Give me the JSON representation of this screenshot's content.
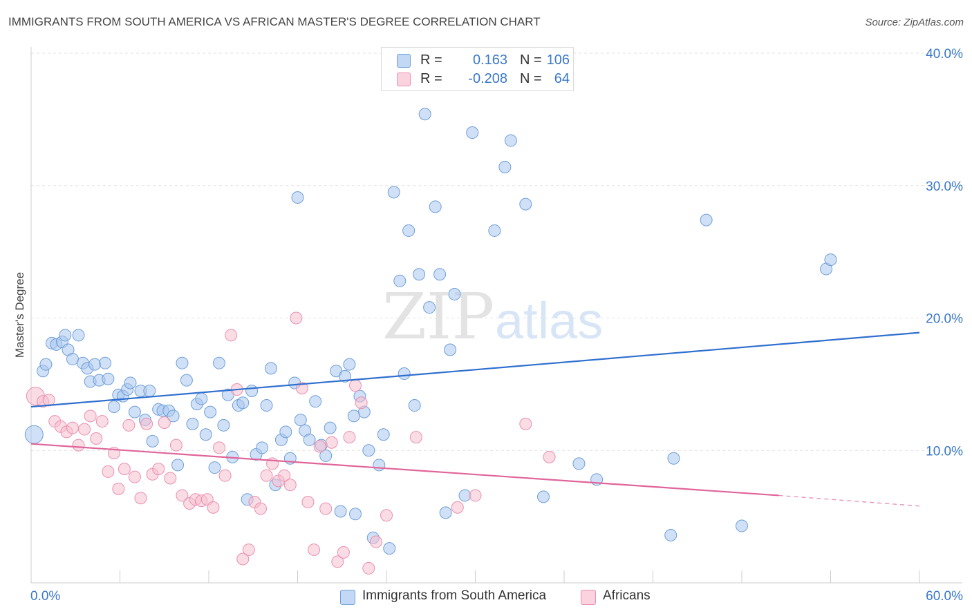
{
  "title": "IMMIGRANTS FROM SOUTH AMERICA VS AFRICAN MASTER'S DEGREE CORRELATION CHART",
  "source": "Source: ZipAtlas.com",
  "watermark": {
    "zip": "ZIP",
    "atlas": "atlas"
  },
  "legend": {
    "r_label": "R =",
    "n_label": "N =",
    "rows": [
      {
        "r": "0.163",
        "n": "106"
      },
      {
        "r": "-0.208",
        "n": "64"
      }
    ]
  },
  "chart_data": {
    "type": "scatter",
    "title": "IMMIGRANTS FROM SOUTH AMERICA VS AFRICAN MASTER'S DEGREE CORRELATION CHART",
    "xlabel": "",
    "ylabel": "Master's Degree",
    "xlim": [
      0,
      60
    ],
    "ylim": [
      0,
      40
    ],
    "x_tick_labels": [
      "0.0%",
      "60.0%"
    ],
    "y_ticks": [
      10,
      20,
      30,
      40
    ],
    "y_tick_labels": [
      "10.0%",
      "20.0%",
      "30.0%",
      "40.0%"
    ],
    "grid": "horizontal dashed",
    "legend_placement": "top-center and bottom",
    "series": [
      {
        "name": "Immigrants from South America",
        "color": "#a9c6ee",
        "edge_color": "#6f9fd8",
        "line_color": "#2f6fcf",
        "r": 0.163,
        "n": 106,
        "trend": {
          "x": [
            0,
            60
          ],
          "y": [
            13.3,
            18.9
          ]
        },
        "points": [
          [
            0.2,
            11.2
          ],
          [
            0.8,
            16.0
          ],
          [
            1.0,
            16.5
          ],
          [
            1.4,
            18.1
          ],
          [
            1.7,
            18.0
          ],
          [
            2.1,
            18.2
          ],
          [
            2.3,
            18.7
          ],
          [
            2.5,
            17.6
          ],
          [
            2.8,
            16.9
          ],
          [
            3.2,
            18.7
          ],
          [
            3.5,
            16.6
          ],
          [
            3.8,
            16.2
          ],
          [
            4.0,
            15.2
          ],
          [
            4.3,
            16.5
          ],
          [
            4.6,
            15.3
          ],
          [
            5.0,
            16.6
          ],
          [
            5.2,
            15.4
          ],
          [
            5.6,
            13.3
          ],
          [
            5.9,
            14.2
          ],
          [
            6.2,
            14.1
          ],
          [
            6.5,
            14.6
          ],
          [
            6.7,
            15.1
          ],
          [
            7.0,
            12.9
          ],
          [
            7.4,
            14.5
          ],
          [
            7.7,
            12.3
          ],
          [
            8.0,
            14.5
          ],
          [
            8.2,
            10.7
          ],
          [
            8.6,
            13.1
          ],
          [
            8.9,
            13.0
          ],
          [
            9.3,
            13.0
          ],
          [
            9.6,
            12.6
          ],
          [
            9.9,
            8.9
          ],
          [
            10.2,
            16.6
          ],
          [
            10.5,
            15.3
          ],
          [
            10.9,
            12.0
          ],
          [
            11.2,
            13.5
          ],
          [
            11.5,
            13.9
          ],
          [
            11.8,
            11.2
          ],
          [
            12.1,
            12.9
          ],
          [
            12.4,
            8.7
          ],
          [
            12.7,
            16.6
          ],
          [
            13.0,
            11.9
          ],
          [
            13.3,
            14.2
          ],
          [
            13.6,
            9.5
          ],
          [
            14.0,
            13.4
          ],
          [
            14.3,
            13.6
          ],
          [
            14.6,
            6.3
          ],
          [
            14.9,
            14.5
          ],
          [
            15.2,
            9.7
          ],
          [
            15.6,
            10.2
          ],
          [
            15.9,
            13.4
          ],
          [
            16.2,
            16.2
          ],
          [
            16.5,
            7.4
          ],
          [
            16.9,
            10.8
          ],
          [
            17.2,
            11.4
          ],
          [
            17.5,
            9.4
          ],
          [
            17.8,
            15.1
          ],
          [
            18.2,
            12.3
          ],
          [
            18.5,
            11.5
          ],
          [
            18.8,
            10.8
          ],
          [
            19.2,
            13.7
          ],
          [
            19.6,
            10.4
          ],
          [
            19.9,
            9.6
          ],
          [
            20.2,
            11.7
          ],
          [
            20.6,
            16.0
          ],
          [
            20.9,
            5.4
          ],
          [
            21.2,
            15.6
          ],
          [
            21.5,
            16.5
          ],
          [
            21.9,
            5.2
          ],
          [
            22.2,
            14.1
          ],
          [
            22.5,
            12.9
          ],
          [
            22.8,
            10.0
          ],
          [
            23.1,
            3.4
          ],
          [
            23.5,
            8.9
          ],
          [
            23.8,
            11.2
          ],
          [
            24.2,
            2.6
          ],
          [
            24.5,
            29.5
          ],
          [
            24.9,
            22.8
          ],
          [
            25.2,
            15.8
          ],
          [
            25.5,
            26.6
          ],
          [
            25.9,
            13.4
          ],
          [
            26.2,
            23.3
          ],
          [
            26.6,
            35.4
          ],
          [
            26.9,
            20.8
          ],
          [
            27.3,
            28.4
          ],
          [
            27.6,
            23.3
          ],
          [
            28.0,
            5.3
          ],
          [
            28.3,
            17.6
          ],
          [
            28.6,
            21.8
          ],
          [
            18.0,
            29.1
          ],
          [
            29.3,
            6.6
          ],
          [
            29.8,
            34.0
          ],
          [
            31.3,
            26.6
          ],
          [
            32.0,
            31.4
          ],
          [
            32.4,
            33.4
          ],
          [
            33.4,
            28.6
          ],
          [
            34.6,
            6.5
          ],
          [
            37.0,
            9.0
          ],
          [
            38.2,
            7.8
          ],
          [
            43.2,
            3.6
          ],
          [
            43.4,
            9.4
          ],
          [
            45.6,
            27.4
          ],
          [
            48.0,
            4.3
          ],
          [
            53.7,
            23.7
          ],
          [
            54.0,
            24.4
          ],
          [
            21.8,
            12.6
          ]
        ]
      },
      {
        "name": "Africans",
        "color": "#f6bfd0",
        "edge_color": "#ea8fae",
        "line_color": "#e0649a",
        "r": -0.208,
        "n": 64,
        "trend": {
          "x": [
            0,
            50.5
          ],
          "y": [
            10.5,
            6.6
          ]
        },
        "trend_dashed": {
          "x": [
            50.5,
            60
          ],
          "y": [
            6.6,
            5.8
          ]
        },
        "points": [
          [
            0.3,
            14.1
          ],
          [
            0.8,
            13.7
          ],
          [
            1.2,
            13.8
          ],
          [
            1.6,
            12.2
          ],
          [
            2.0,
            11.8
          ],
          [
            2.4,
            11.4
          ],
          [
            2.8,
            11.7
          ],
          [
            3.2,
            10.4
          ],
          [
            3.6,
            11.6
          ],
          [
            4.0,
            12.6
          ],
          [
            4.4,
            10.9
          ],
          [
            4.8,
            12.2
          ],
          [
            5.2,
            8.4
          ],
          [
            5.6,
            9.8
          ],
          [
            5.9,
            7.1
          ],
          [
            6.3,
            8.6
          ],
          [
            6.6,
            11.9
          ],
          [
            7.0,
            8.0
          ],
          [
            7.4,
            6.4
          ],
          [
            7.8,
            12.0
          ],
          [
            8.2,
            8.2
          ],
          [
            8.6,
            8.6
          ],
          [
            9.0,
            12.1
          ],
          [
            9.4,
            7.9
          ],
          [
            9.8,
            10.4
          ],
          [
            10.2,
            6.6
          ],
          [
            10.7,
            6.0
          ],
          [
            11.1,
            6.3
          ],
          [
            11.5,
            6.2
          ],
          [
            11.9,
            6.3
          ],
          [
            12.3,
            5.7
          ],
          [
            12.7,
            10.2
          ],
          [
            13.1,
            8.1
          ],
          [
            13.5,
            18.7
          ],
          [
            13.9,
            14.6
          ],
          [
            14.3,
            1.8
          ],
          [
            14.7,
            2.5
          ],
          [
            15.1,
            6.1
          ],
          [
            15.5,
            5.6
          ],
          [
            15.9,
            8.1
          ],
          [
            16.3,
            9.0
          ],
          [
            16.7,
            7.7
          ],
          [
            17.1,
            8.1
          ],
          [
            17.5,
            7.4
          ],
          [
            17.9,
            20.0
          ],
          [
            18.3,
            14.7
          ],
          [
            18.7,
            6.1
          ],
          [
            19.1,
            2.5
          ],
          [
            19.5,
            10.3
          ],
          [
            19.9,
            5.6
          ],
          [
            20.3,
            10.6
          ],
          [
            20.7,
            1.6
          ],
          [
            21.1,
            2.3
          ],
          [
            21.5,
            11.0
          ],
          [
            21.9,
            14.9
          ],
          [
            22.3,
            13.6
          ],
          [
            22.8,
            1.1
          ],
          [
            23.3,
            3.1
          ],
          [
            24.0,
            5.1
          ],
          [
            26.0,
            11.0
          ],
          [
            28.8,
            5.7
          ],
          [
            30.0,
            6.6
          ],
          [
            33.4,
            12.0
          ],
          [
            35.0,
            9.5
          ]
        ]
      }
    ]
  }
}
